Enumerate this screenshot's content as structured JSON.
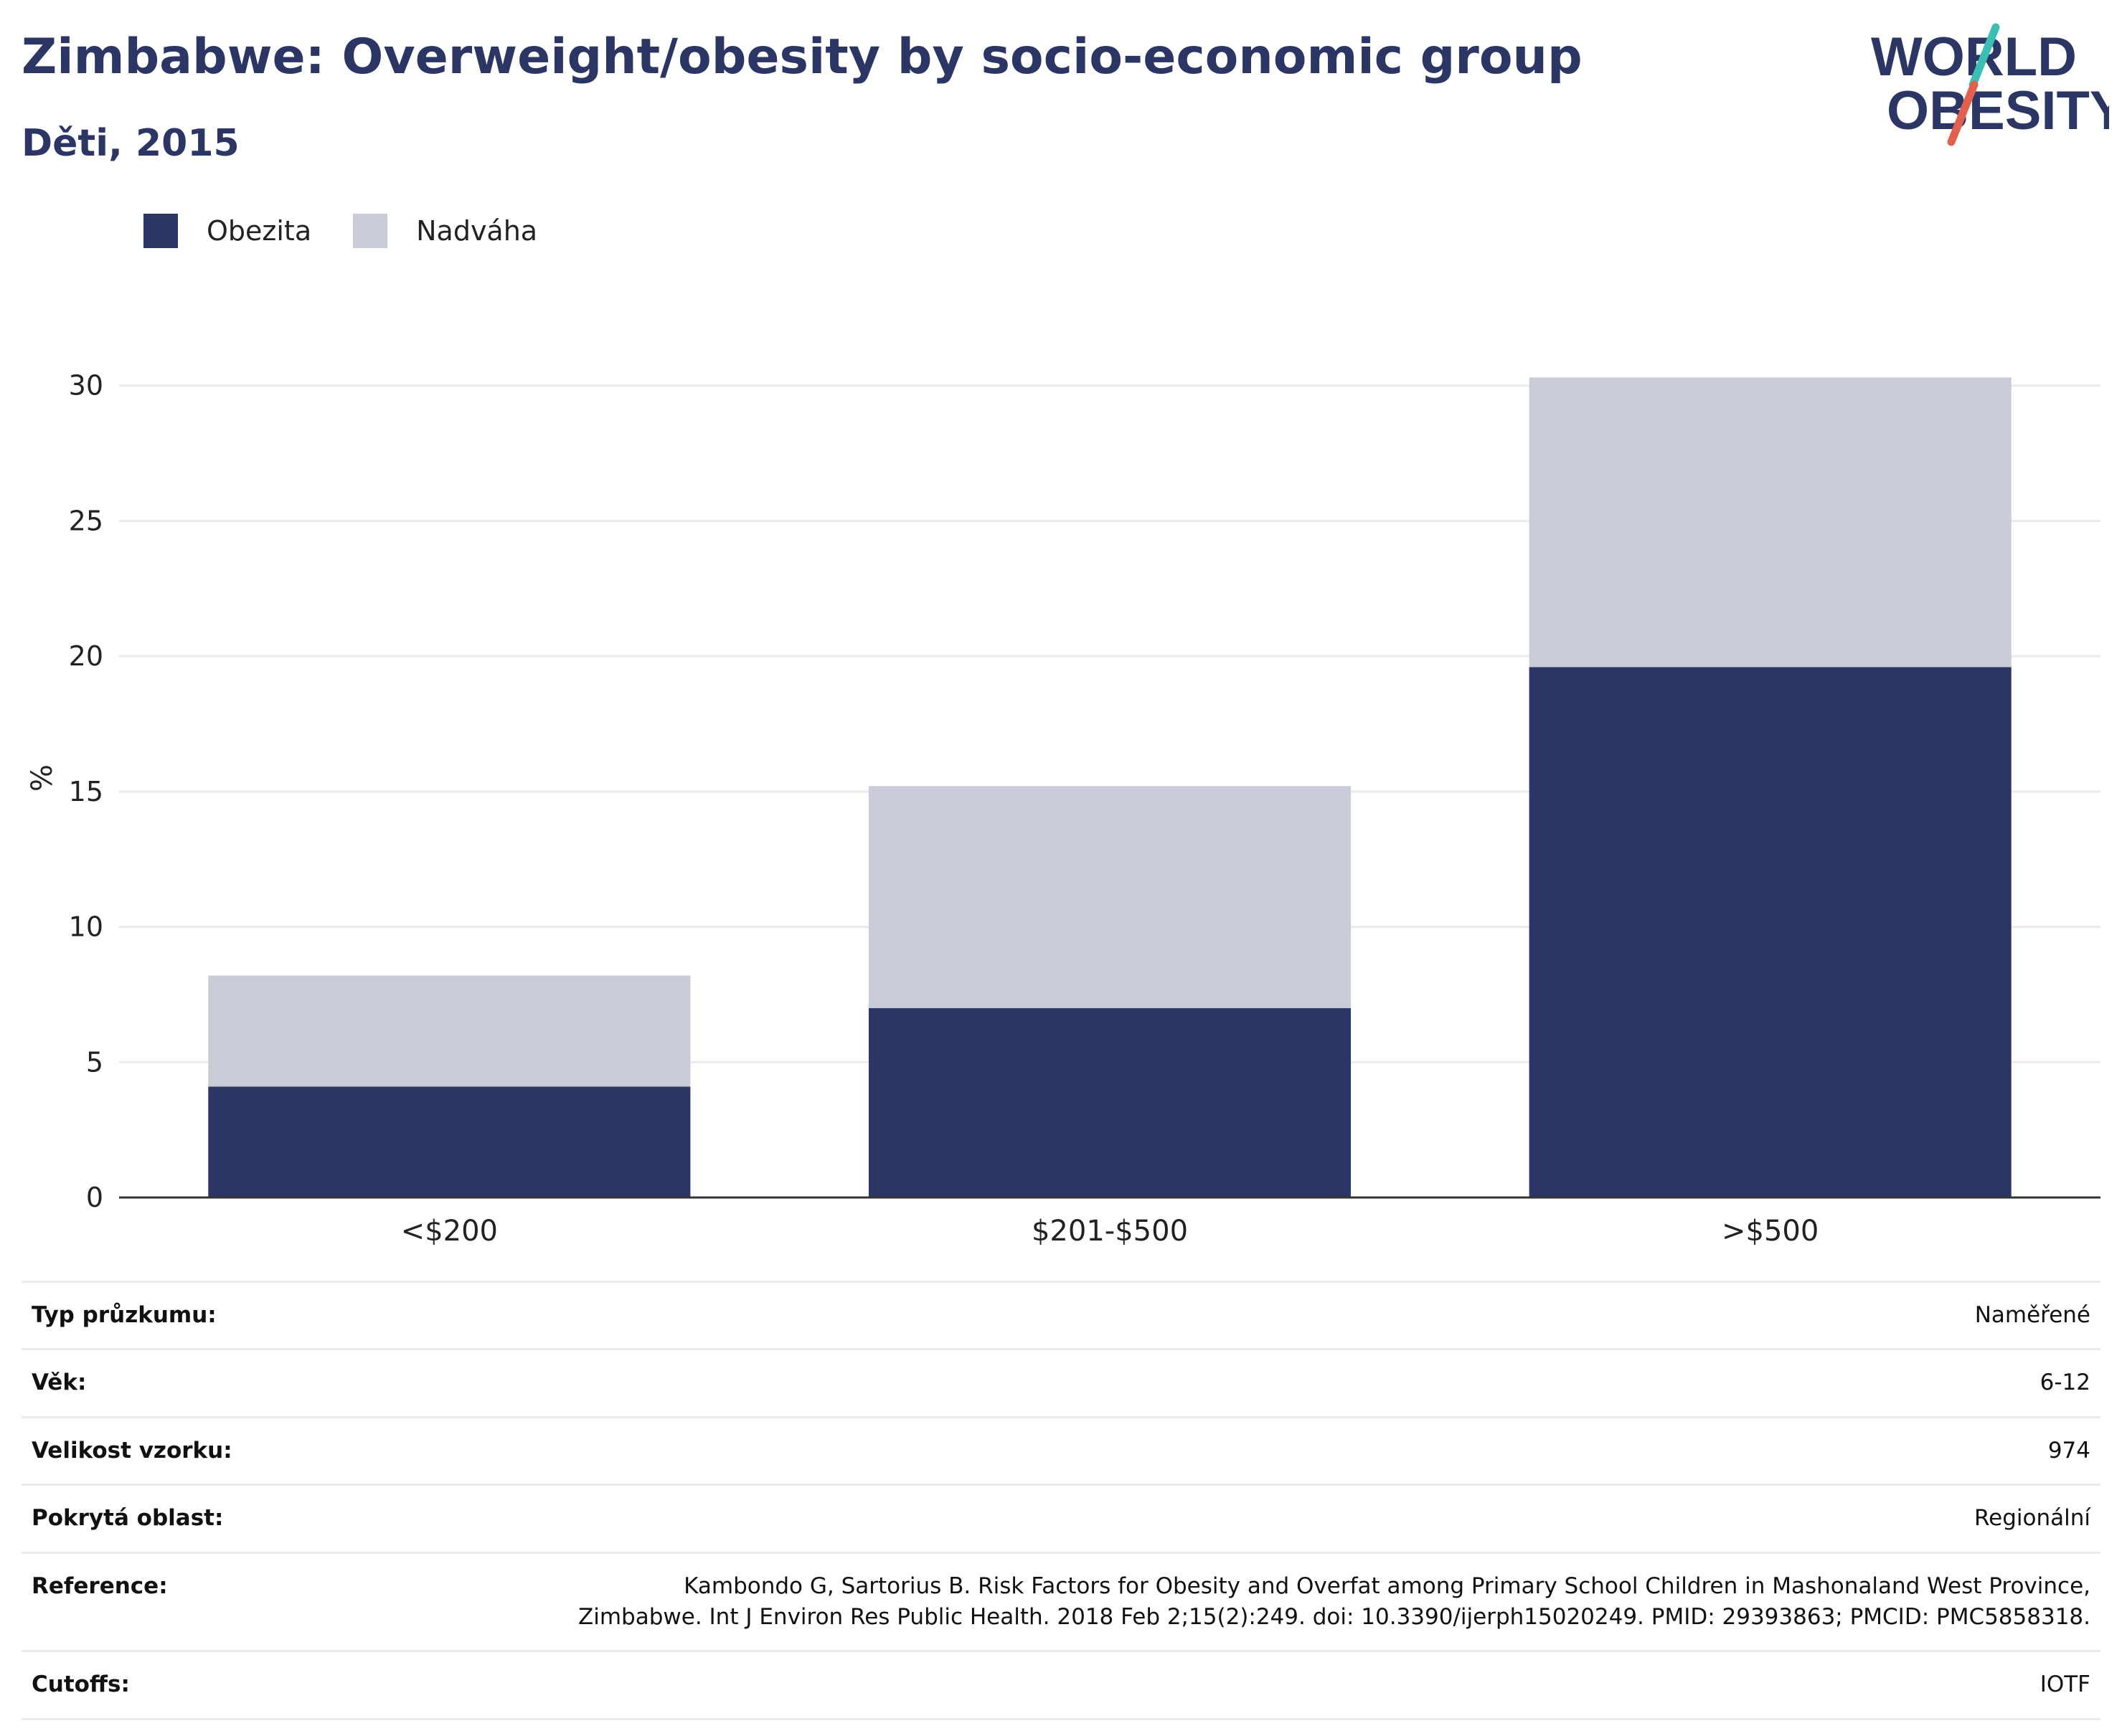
{
  "header": {
    "title": "Zimbabwe: Overweight/obesity by socio-economic group",
    "subtitle": "Děti, 2015"
  },
  "logo": {
    "line1": "WORLD",
    "line2": "OBESITY",
    "text_color": "#2b3664",
    "slash_color_top": "#3bbfb5",
    "slash_color_bottom": "#e4604e"
  },
  "colors": {
    "obesity": "#2b3664",
    "overweight": "#c9ccd7",
    "gridline": "#e9ecef",
    "axis": "#333333"
  },
  "chart_data": {
    "type": "bar",
    "stacked": true,
    "categories": [
      "<$200",
      "$201-$500",
      ">$500"
    ],
    "series": [
      {
        "name": "Obezita",
        "values": [
          4.1,
          7.0,
          19.6
        ],
        "color": "#2b3664"
      },
      {
        "name": "Nadváha",
        "values": [
          4.1,
          8.2,
          10.7
        ],
        "color": "#c9ccd7"
      }
    ],
    "ylabel": "%",
    "xlabel": "",
    "ylim": [
      0,
      31
    ],
    "yticks": [
      0,
      5,
      10,
      15,
      20,
      25,
      30
    ],
    "grid": true,
    "legend_position": "top-left"
  },
  "details": [
    {
      "label": "Typ průzkumu:",
      "value": "Naměřené"
    },
    {
      "label": "Věk:",
      "value": "6-12"
    },
    {
      "label": "Velikost vzorku:",
      "value": "974"
    },
    {
      "label": "Pokrytá oblast:",
      "value": "Regionální"
    },
    {
      "label": "Reference:",
      "value": "Kambondo G, Sartorius B. Risk Factors for Obesity and Overfat among Primary School Children in Mashonaland West Province, Zimbabwe. Int J Environ Res Public Health. 2018 Feb 2;15(2):249. doi: 10.3390/ijerph15020249. PMID: 29393863; PMCID: PMC5858318."
    },
    {
      "label": "Cutoffs:",
      "value": "IOTF"
    }
  ]
}
